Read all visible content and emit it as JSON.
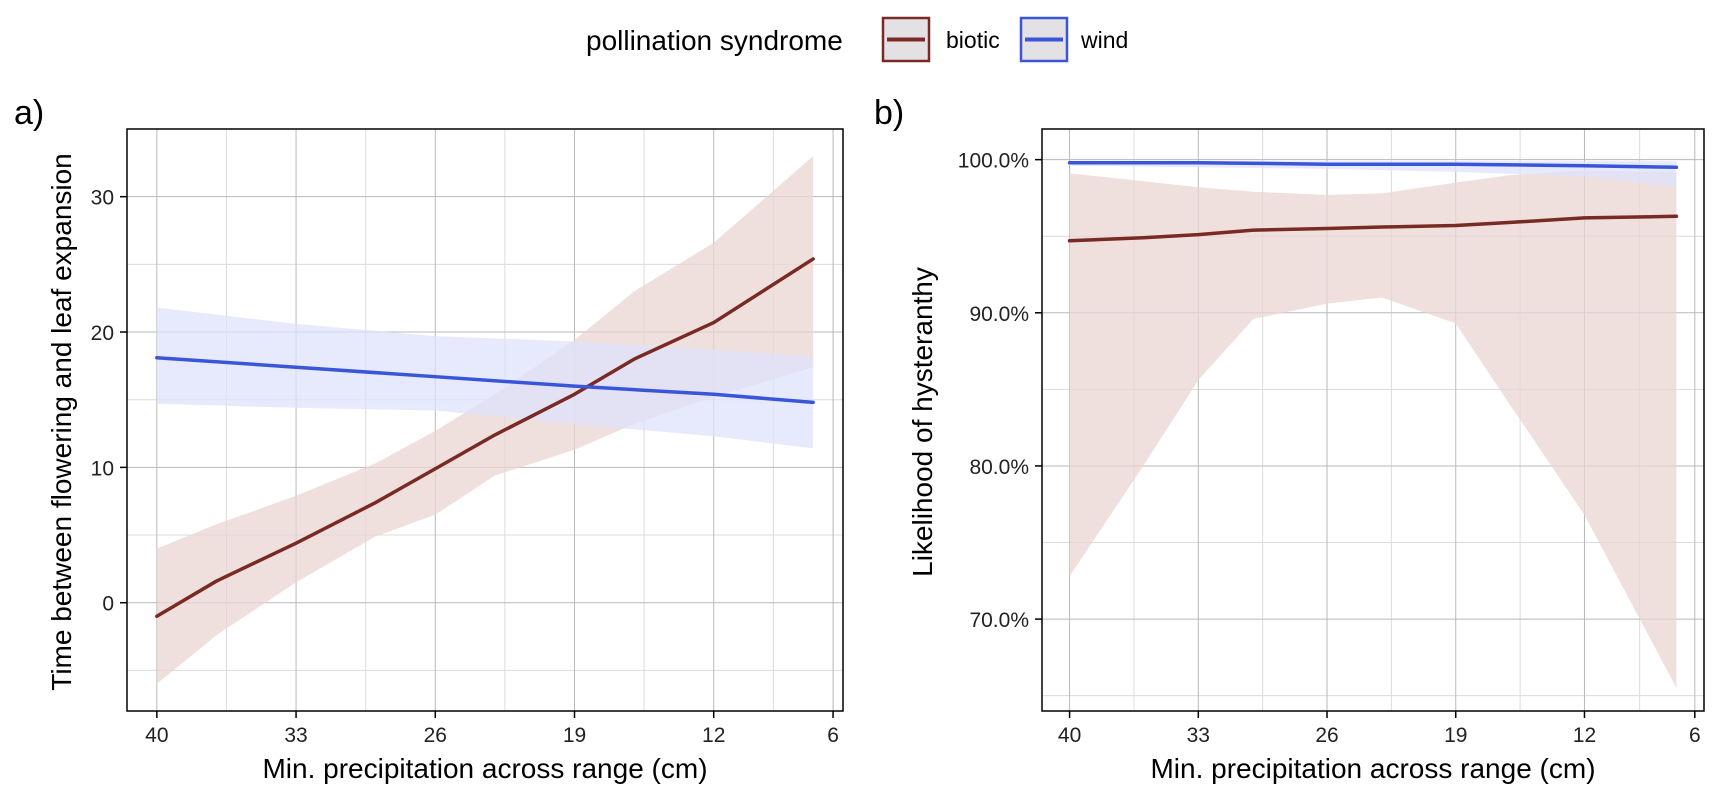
{
  "legend": {
    "title": "pollination syndrome",
    "items": [
      {
        "label": "biotic",
        "color": "#7a2a24"
      },
      {
        "label": "wind",
        "color": "#3a55d8"
      }
    ]
  },
  "colors": {
    "biotic_line": "#7a2a24",
    "biotic_band": "#e9d6d3",
    "wind_line": "#3a55d8",
    "wind_band": "#dfe3fb",
    "overlap_band": "#ccc7e0",
    "grid_major": "#b9b9b9",
    "grid_minor": "#dcdcdc"
  },
  "chart_data": [
    {
      "type": "line",
      "panel_label": "a)",
      "xlabel": "Min. precipitation across range (cm)",
      "ylabel": "Time between flowering and leaf expansion",
      "x_reversed": true,
      "xlim": [
        41.5,
        5.5
      ],
      "ylim": [
        -8,
        35
      ],
      "x_ticks": [
        40,
        33,
        26,
        19,
        12,
        6
      ],
      "x_tick_labels": [
        "40",
        "33",
        "26",
        "19",
        "12",
        "6"
      ],
      "y_ticks": [
        0,
        10,
        20,
        30
      ],
      "y_tick_labels": [
        "0",
        "10",
        "20",
        "30"
      ],
      "grid": true,
      "legend_position": "top",
      "series": [
        {
          "name": "biotic",
          "x": [
            40,
            37,
            33,
            29,
            26,
            23,
            19,
            16,
            12,
            7
          ],
          "y": [
            -1,
            1.6,
            4.4,
            7.4,
            9.9,
            12.4,
            15.4,
            18,
            20.7,
            25.4
          ],
          "lower": [
            -6,
            -2.4,
            1.5,
            4.9,
            6.5,
            9.4,
            11.3,
            13.2,
            15.2,
            17.4
          ],
          "upper": [
            4,
            5.8,
            7.9,
            10.3,
            12.7,
            15.4,
            19.4,
            23,
            26.6,
            33
          ]
        },
        {
          "name": "wind",
          "x": [
            40,
            33,
            26,
            19,
            12,
            7
          ],
          "y": [
            18.1,
            17.4,
            16.7,
            16,
            15.4,
            14.8
          ],
          "lower": [
            14.7,
            14.4,
            14.2,
            13.2,
            12.3,
            11.4
          ],
          "upper": [
            21.8,
            20.6,
            19.7,
            19.3,
            18.7,
            18.2
          ]
        }
      ]
    },
    {
      "type": "line",
      "panel_label": "b)",
      "xlabel": "Min. precipitation across range (cm)",
      "ylabel": "Likelihood of hysteranthy",
      "x_reversed": true,
      "xlim": [
        41.5,
        5.5
      ],
      "ylim": [
        0.64,
        1.02
      ],
      "x_ticks": [
        40,
        33,
        26,
        19,
        12,
        6
      ],
      "x_tick_labels": [
        "40",
        "33",
        "26",
        "19",
        "12",
        "6"
      ],
      "y_ticks": [
        0.7,
        0.8,
        0.9,
        1.0
      ],
      "y_tick_labels": [
        "70.0%",
        "80.0%",
        "90.0%",
        "100.0%"
      ],
      "grid": true,
      "legend_position": "top",
      "series": [
        {
          "name": "biotic",
          "x": [
            40,
            36,
            33,
            30,
            26,
            23,
            19,
            16,
            12,
            7
          ],
          "y": [
            0.947,
            0.949,
            0.951,
            0.954,
            0.955,
            0.956,
            0.957,
            0.959,
            0.962,
            0.963
          ],
          "lower": [
            0.728,
            0.8,
            0.856,
            0.896,
            0.906,
            0.91,
            0.893,
            0.839,
            0.768,
            0.655
          ],
          "upper": [
            0.991,
            0.986,
            0.982,
            0.979,
            0.977,
            0.978,
            0.985,
            0.99,
            0.993,
            0.992
          ]
        },
        {
          "name": "wind",
          "x": [
            40,
            33,
            26,
            19,
            12,
            7
          ],
          "y": [
            0.998,
            0.998,
            0.997,
            0.997,
            0.996,
            0.995
          ],
          "lower": [
            0.996,
            0.995,
            0.994,
            0.992,
            0.989,
            0.982
          ],
          "upper": [
            0.999,
            0.999,
            0.999,
            0.999,
            0.999,
            0.999
          ]
        }
      ]
    }
  ]
}
